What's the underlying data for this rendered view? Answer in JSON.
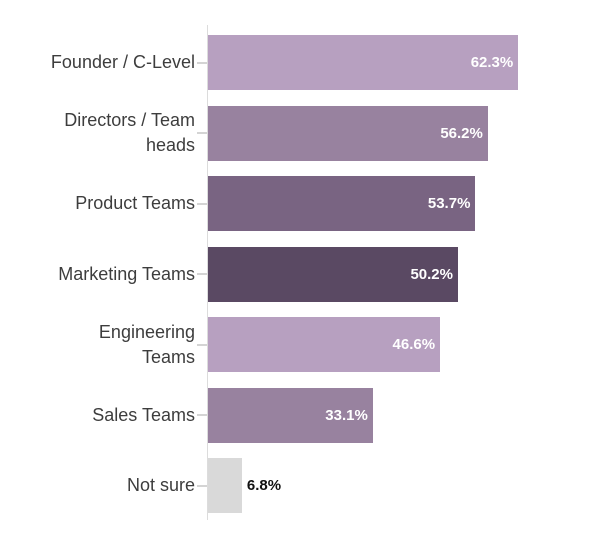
{
  "chart_data": {
    "type": "bar",
    "orientation": "horizontal",
    "title": "",
    "xlabel": "",
    "ylabel": "",
    "grid": false,
    "legend": false,
    "xlim": [
      0,
      100
    ],
    "categories": [
      "Founder / C-Level",
      "Directors / Team heads",
      "Product Teams",
      "Marketing Teams",
      "Engineering Teams",
      "Sales Teams",
      "Not sure"
    ],
    "display_labels": [
      "Founder / C-Level",
      "Directors / Team\nheads",
      "Product Teams",
      "Marketing Teams",
      "Engineering\nTeams",
      "Sales Teams",
      "Not sure"
    ],
    "values": [
      62.3,
      56.2,
      53.7,
      50.2,
      46.6,
      33.1,
      6.8
    ],
    "value_labels": [
      "62.3%",
      "56.2%",
      "53.7%",
      "50.2%",
      "46.6%",
      "33.1%",
      "6.8%"
    ],
    "bar_colors": [
      "#b7a0c0",
      "#98829f",
      "#796482",
      "#5a4963",
      "#b7a0c0",
      "#98829f",
      "#d9d9d9"
    ],
    "value_label_colors": [
      "#ffffff",
      "#ffffff",
      "#ffffff",
      "#ffffff",
      "#ffffff",
      "#ffffff",
      "#111111"
    ],
    "value_label_placement": [
      "inside",
      "inside",
      "inside",
      "inside",
      "inside",
      "inside",
      "outside"
    ],
    "axis_line_color": "#dcdcdc",
    "tick_color": "#d4d4d4",
    "category_label_color": "#3d3d3d"
  }
}
